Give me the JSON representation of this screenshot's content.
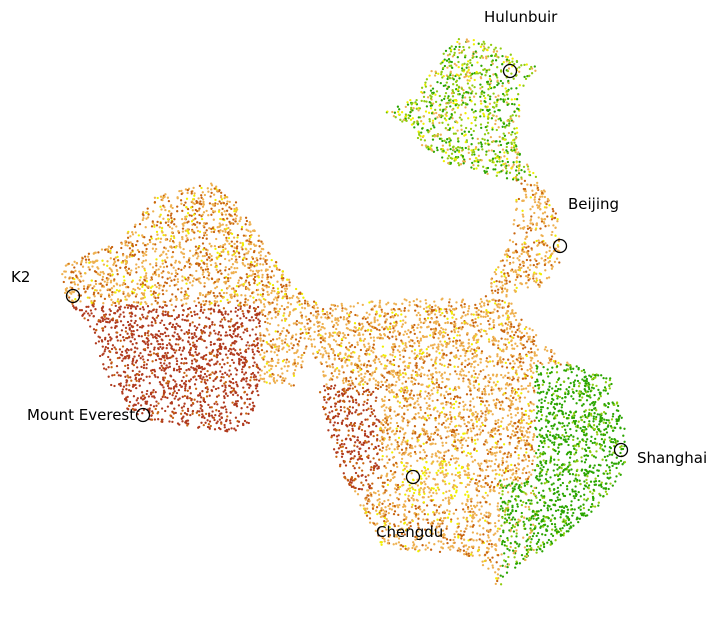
{
  "map": {
    "locations": [
      {
        "id": "hulunbuir",
        "label": "Hulunbuir"
      },
      {
        "id": "beijing",
        "label": "Beijing"
      },
      {
        "id": "k2",
        "label": "K2"
      },
      {
        "id": "mount-everest",
        "label": "Mount Everest"
      },
      {
        "id": "shanghai",
        "label": "Shanghai"
      },
      {
        "id": "chengdu",
        "label": "Chengdu"
      }
    ],
    "colors": {
      "dark_red": "#b03a1e",
      "orange": "#c8640f",
      "light_orange": "#eeb050",
      "yellow": "#f0f000",
      "yellow_green": "#90cc10",
      "green": "#2aa500",
      "marker": "#000000"
    }
  }
}
